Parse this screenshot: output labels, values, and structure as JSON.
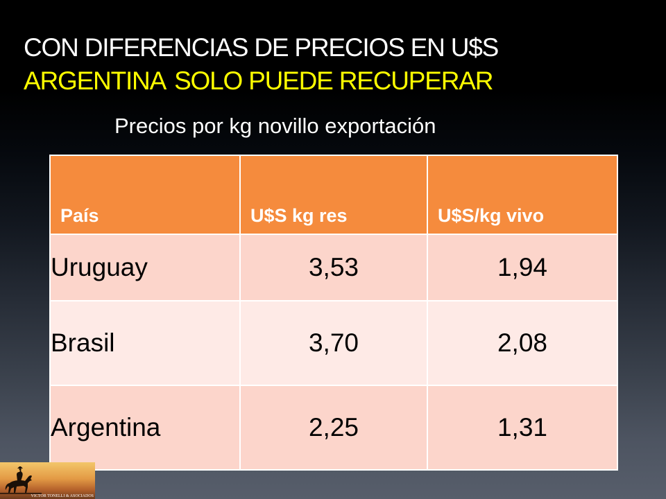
{
  "slide": {
    "title_line1": "CON DIFERENCIAS DE PRECIOS EN U$S",
    "title_line2_part1": "ARGENTINA",
    "title_line2_part2": "SOLO PUEDE RECUPERAR",
    "subtitle": "Precios por kg  novillo exportación"
  },
  "table": {
    "headers": [
      "País",
      "U$S kg res",
      "U$S/kg vivo"
    ],
    "rows": [
      [
        "Uruguay",
        "3,53",
        "1,94"
      ],
      [
        "Brasil",
        "3,70",
        "2,08"
      ],
      [
        "Argentina",
        "2,25",
        "1,31"
      ]
    ]
  },
  "logo": {
    "caption": "VICTOR TONELLI & ASOCIADOS",
    "icon": "horse-rider-silhouette-icon"
  },
  "colors": {
    "title_white": "#ffffff",
    "title_yellow": "#ffff00",
    "header_orange": "#f58b3d",
    "row_pink": "#fcd5cb",
    "row_light": "#feeae6"
  }
}
